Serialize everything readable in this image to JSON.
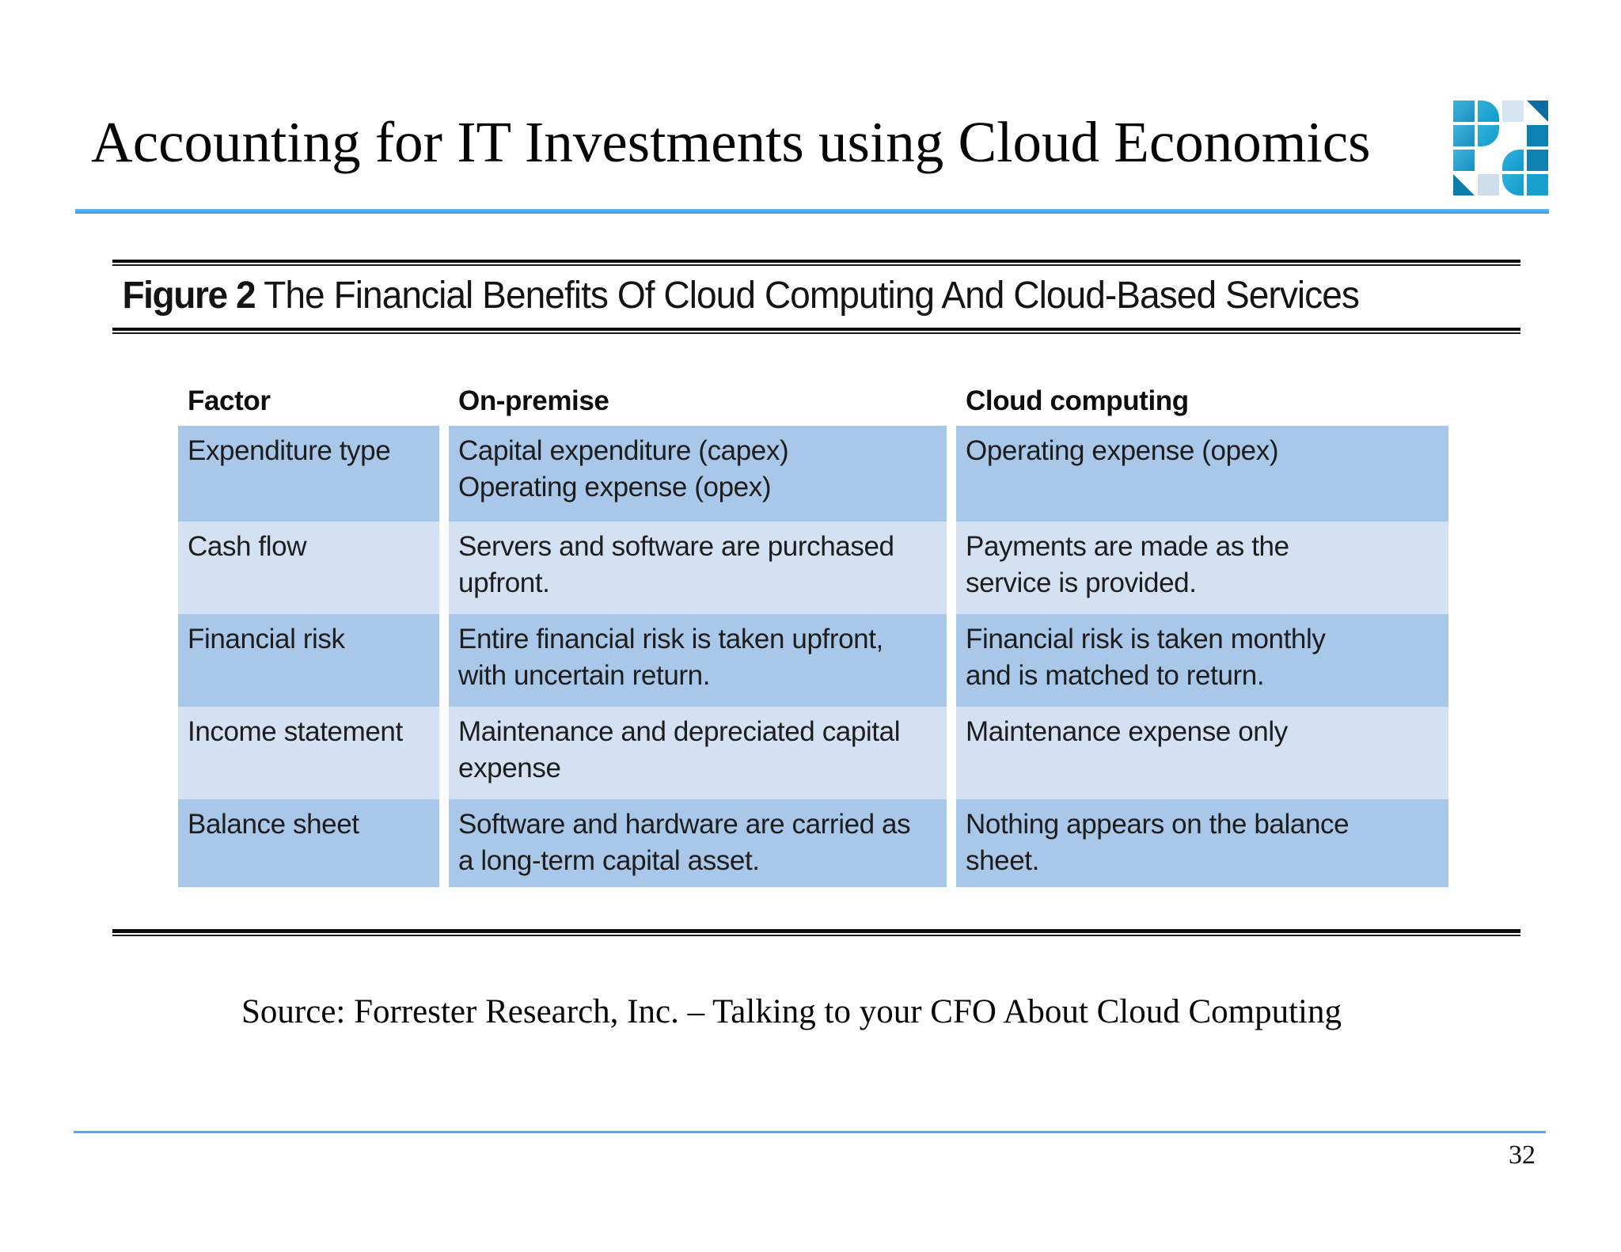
{
  "slide": {
    "title": "Accounting for IT Investments using Cloud Economics",
    "source_line": "Source: Forrester Research, Inc. – Talking to your CFO About Cloud Computing",
    "page_number": "32"
  },
  "figure": {
    "caption_label": "Figure 2",
    "caption_text": " The Financial Benefits Of Cloud Computing And Cloud-Based Services",
    "table": {
      "headers": [
        "Factor",
        "On-premise",
        "Cloud computing"
      ],
      "rows": [
        {
          "factor": "Expenditure type",
          "on_premise": "Capital expenditure (capex)\nOperating expense (opex)",
          "cloud": "Operating expense (opex)"
        },
        {
          "factor": "Cash flow",
          "on_premise": "Servers and software are purchased\nupfront.",
          "cloud": "Payments are made as the\nservice is provided."
        },
        {
          "factor": "Financial risk",
          "on_premise": "Entire financial risk is taken upfront,\nwith uncertain return.",
          "cloud": "Financial risk is taken monthly\nand is matched to return."
        },
        {
          "factor": "Income statement",
          "on_premise": "Maintenance and depreciated capital\nexpense",
          "cloud": "Maintenance expense only"
        },
        {
          "factor": "Balance sheet",
          "on_premise": "Software and hardware are carried as\na long-term capital asset.",
          "cloud": "Nothing appears on the balance\nsheet."
        }
      ]
    }
  },
  "icons": {
    "logo": "grid-tile-logo"
  },
  "colors": {
    "accent_rule_blue": "#54a9e5",
    "table_row_dark": "#a9c7e9",
    "table_row_light": "#d4e1f3",
    "figure_rule": "#0b0b0b",
    "logo_teal": "#18a0cd",
    "logo_blue": "#1590c2",
    "logo_dark_blue": "#0e81b3",
    "logo_pale_blue": "#d6e5f1"
  }
}
